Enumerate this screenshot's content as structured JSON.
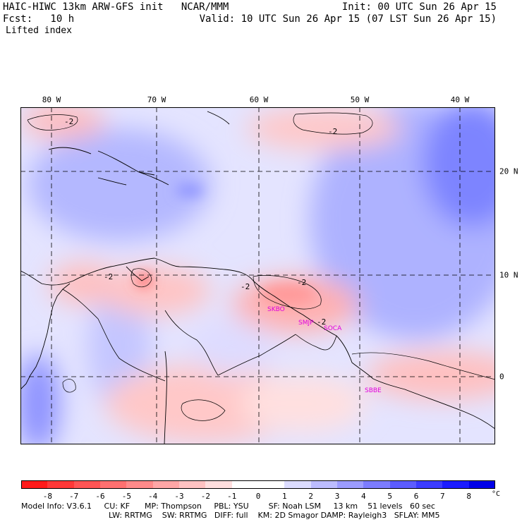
{
  "header": {
    "model_line": "HAIC-HIWC 13km ARW-GFS init   NCAR/MMM",
    "fcst_line": "Fcst:   10 h",
    "init_line": "Init: 00 UTC Sun 26 Apr 15",
    "valid_line": "Valid: 10 UTC Sun 26 Apr 15 (07 LST Sun 26 Apr 15)",
    "field_name": "Lifted index"
  },
  "map": {
    "longitude_labels": [
      "80 W",
      "70 W",
      "60 W",
      "50 W",
      "40 W"
    ],
    "latitude_labels": [
      "20 N",
      "10 N",
      "0"
    ],
    "contour_labels": [
      "-2",
      "-2",
      "-2",
      "-2",
      "-2",
      "-2"
    ],
    "stations": [
      "SKBO",
      "SMJP",
      "SOCA",
      "SBBE"
    ]
  },
  "colorbar": {
    "ticks": [
      "-8",
      "-7",
      "-6",
      "-5",
      "-4",
      "-3",
      "-2",
      "-1",
      "0",
      "1",
      "2",
      "3",
      "4",
      "5",
      "6",
      "7",
      "8"
    ],
    "unit": "°C",
    "colors": [
      "#ff1a1a",
      "#ff3838",
      "#ff5454",
      "#ff7070",
      "#ff8a8a",
      "#ffa6a6",
      "#ffc2c2",
      "#ffdede",
      "#ffffff",
      "#ffffff",
      "#dcdcff",
      "#bcbcff",
      "#9c9cff",
      "#7c7cff",
      "#5c5cff",
      "#3c3cff",
      "#1c1cff",
      "#0000e8"
    ]
  },
  "footer": {
    "line1": "Model Info: V3.6.1     CU: KF      MP: Thompson     PBL: YSU        SF: Noah LSM     13 km    51 levels   60 sec",
    "line2": "LW: RRTMG    SW: RRTMG   DIFF: full    KM: 2D Smagor DAMP: Rayleigh3   SFLAY: MM5"
  }
}
